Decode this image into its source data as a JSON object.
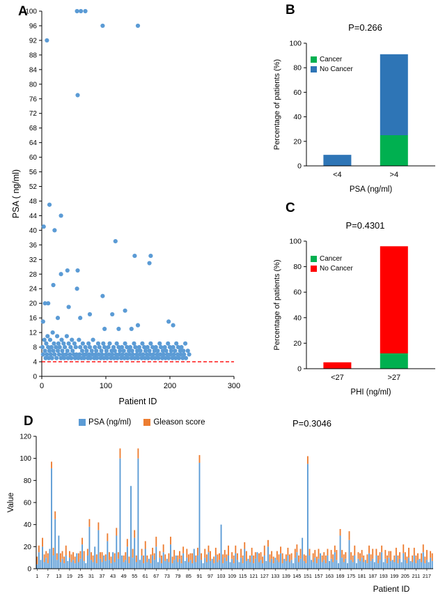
{
  "chart_data": [
    {
      "panel": "A",
      "type": "scatter",
      "xlabel": "Patient ID",
      "ylabel": "PSA ( ng/ml)",
      "xlim": [
        0,
        300
      ],
      "xticks": [
        0,
        100,
        200,
        300
      ],
      "ylim": [
        0,
        100
      ],
      "ytick_step": 4,
      "point_color": "#5B9BD5",
      "threshold_line": {
        "y": 4,
        "color": "#FF0000",
        "style": "dashed"
      },
      "points": [
        [
          55,
          100
        ],
        [
          61,
          100
        ],
        [
          68,
          100
        ],
        [
          95,
          96
        ],
        [
          150,
          96
        ],
        [
          8,
          92
        ],
        [
          56,
          77
        ],
        [
          12,
          47
        ],
        [
          30,
          44
        ],
        [
          3,
          41
        ],
        [
          20,
          40
        ],
        [
          115,
          37
        ],
        [
          145,
          33
        ],
        [
          170,
          33
        ],
        [
          168,
          31
        ],
        [
          40,
          29
        ],
        [
          56,
          29
        ],
        [
          30,
          28
        ],
        [
          18,
          25
        ],
        [
          55,
          24
        ],
        [
          95,
          22
        ],
        [
          5,
          20
        ],
        [
          10,
          20
        ],
        [
          42,
          19
        ],
        [
          130,
          18
        ],
        [
          75,
          17
        ],
        [
          110,
          17
        ],
        [
          25,
          16
        ],
        [
          60,
          16
        ],
        [
          2,
          15
        ],
        [
          198,
          15
        ],
        [
          150,
          14
        ],
        [
          205,
          14
        ],
        [
          98,
          13
        ],
        [
          120,
          13
        ],
        [
          140,
          13
        ],
        [
          1,
          8
        ],
        [
          2,
          6
        ],
        [
          4,
          10
        ],
        [
          5,
          7
        ],
        [
          6,
          5
        ],
        [
          7,
          9
        ],
        [
          8,
          6
        ],
        [
          9,
          11
        ],
        [
          10,
          8
        ],
        [
          11,
          5
        ],
        [
          12,
          7
        ],
        [
          13,
          10
        ],
        [
          14,
          6
        ],
        [
          15,
          8
        ],
        [
          16,
          5
        ],
        [
          17,
          12
        ],
        [
          18,
          7
        ],
        [
          19,
          9
        ],
        [
          20,
          6
        ],
        [
          22,
          8
        ],
        [
          23,
          5
        ],
        [
          24,
          11
        ],
        [
          25,
          7
        ],
        [
          26,
          9
        ],
        [
          27,
          6
        ],
        [
          28,
          8
        ],
        [
          30,
          5
        ],
        [
          31,
          10
        ],
        [
          32,
          7
        ],
        [
          33,
          6
        ],
        [
          34,
          9
        ],
        [
          35,
          5
        ],
        [
          36,
          8
        ],
        [
          38,
          6
        ],
        [
          39,
          11
        ],
        [
          40,
          7
        ],
        [
          41,
          5
        ],
        [
          42,
          9
        ],
        [
          44,
          6
        ],
        [
          45,
          8
        ],
        [
          46,
          5
        ],
        [
          47,
          10
        ],
        [
          48,
          7
        ],
        [
          50,
          6
        ],
        [
          51,
          9
        ],
        [
          52,
          5
        ],
        [
          53,
          8
        ],
        [
          54,
          6
        ],
        [
          57,
          5
        ],
        [
          58,
          10
        ],
        [
          59,
          6
        ],
        [
          60,
          8
        ],
        [
          62,
          5
        ],
        [
          63,
          7
        ],
        [
          64,
          9
        ],
        [
          65,
          6
        ],
        [
          66,
          5
        ],
        [
          68,
          8
        ],
        [
          69,
          6
        ],
        [
          70,
          7
        ],
        [
          72,
          5
        ],
        [
          73,
          9
        ],
        [
          74,
          6
        ],
        [
          75,
          8
        ],
        [
          76,
          5
        ],
        [
          78,
          7
        ],
        [
          79,
          6
        ],
        [
          80,
          10
        ],
        [
          82,
          5
        ],
        [
          83,
          8
        ],
        [
          84,
          6
        ],
        [
          85,
          7
        ],
        [
          86,
          5
        ],
        [
          88,
          9
        ],
        [
          89,
          6
        ],
        [
          90,
          8
        ],
        [
          92,
          5
        ],
        [
          93,
          7
        ],
        [
          94,
          6
        ],
        [
          96,
          9
        ],
        [
          97,
          5
        ],
        [
          98,
          8
        ],
        [
          100,
          6
        ],
        [
          101,
          7
        ],
        [
          102,
          5
        ],
        [
          104,
          8
        ],
        [
          105,
          6
        ],
        [
          106,
          9
        ],
        [
          108,
          5
        ],
        [
          109,
          7
        ],
        [
          110,
          6
        ],
        [
          112,
          8
        ],
        [
          113,
          5
        ],
        [
          114,
          7
        ],
        [
          116,
          6
        ],
        [
          117,
          9
        ],
        [
          118,
          5
        ],
        [
          120,
          8
        ],
        [
          121,
          6
        ],
        [
          122,
          7
        ],
        [
          124,
          5
        ],
        [
          125,
          8
        ],
        [
          126,
          6
        ],
        [
          128,
          7
        ],
        [
          129,
          5
        ],
        [
          130,
          9
        ],
        [
          132,
          6
        ],
        [
          133,
          8
        ],
        [
          134,
          5
        ],
        [
          136,
          7
        ],
        [
          137,
          6
        ],
        [
          138,
          8
        ],
        [
          140,
          5
        ],
        [
          141,
          7
        ],
        [
          142,
          6
        ],
        [
          144,
          9
        ],
        [
          145,
          5
        ],
        [
          146,
          8
        ],
        [
          148,
          6
        ],
        [
          149,
          7
        ],
        [
          150,
          5
        ],
        [
          152,
          8
        ],
        [
          153,
          6
        ],
        [
          154,
          7
        ],
        [
          156,
          5
        ],
        [
          157,
          9
        ],
        [
          158,
          6
        ],
        [
          160,
          8
        ],
        [
          161,
          5
        ],
        [
          162,
          7
        ],
        [
          164,
          6
        ],
        [
          165,
          8
        ],
        [
          166,
          5
        ],
        [
          168,
          7
        ],
        [
          169,
          6
        ],
        [
          170,
          9
        ],
        [
          172,
          5
        ],
        [
          173,
          8
        ],
        [
          174,
          6
        ],
        [
          176,
          7
        ],
        [
          177,
          5
        ],
        [
          178,
          8
        ],
        [
          180,
          6
        ],
        [
          181,
          7
        ],
        [
          182,
          5
        ],
        [
          184,
          9
        ],
        [
          185,
          6
        ],
        [
          186,
          8
        ],
        [
          188,
          5
        ],
        [
          189,
          7
        ],
        [
          190,
          6
        ],
        [
          192,
          8
        ],
        [
          193,
          5
        ],
        [
          194,
          7
        ],
        [
          196,
          6
        ],
        [
          197,
          9
        ],
        [
          198,
          5
        ],
        [
          200,
          8
        ],
        [
          201,
          6
        ],
        [
          202,
          7
        ],
        [
          204,
          5
        ],
        [
          205,
          8
        ],
        [
          206,
          6
        ],
        [
          208,
          7
        ],
        [
          209,
          5
        ],
        [
          210,
          9
        ],
        [
          212,
          6
        ],
        [
          213,
          8
        ],
        [
          214,
          5
        ],
        [
          216,
          7
        ],
        [
          217,
          6
        ],
        [
          218,
          8
        ],
        [
          220,
          5
        ],
        [
          221,
          7
        ],
        [
          222,
          6
        ],
        [
          224,
          9
        ],
        [
          225,
          5
        ],
        [
          228,
          7
        ],
        [
          230,
          6
        ]
      ]
    },
    {
      "panel": "B",
      "type": "stacked_bar",
      "title": "P=0.266",
      "ylabel": "Percentage of patients (%)",
      "xlabel": "PSA (ng/ml)",
      "ylim": [
        0,
        100
      ],
      "ytick_step": 20,
      "categories": [
        "<4",
        ">4"
      ],
      "series": [
        {
          "name": "Cancer",
          "color": "#00B050",
          "values": [
            0,
            25
          ]
        },
        {
          "name": "No Cancer",
          "color": "#2E75B6",
          "values": [
            9,
            66
          ]
        }
      ]
    },
    {
      "panel": "C",
      "type": "stacked_bar",
      "title": "P=0.4301",
      "ylabel": "Percentage of patients (%)",
      "xlabel": "PHI (ng/ml)",
      "ylim": [
        0,
        100
      ],
      "ytick_step": 20,
      "categories": [
        "<27",
        ">27"
      ],
      "series": [
        {
          "name": "Cancer",
          "color": "#00B050",
          "values": [
            0,
            12
          ]
        },
        {
          "name": "No Cancer",
          "color": "#FF0000",
          "values": [
            5,
            84
          ]
        }
      ]
    },
    {
      "panel": "D",
      "type": "stacked_bar_dense",
      "title": "P=0.3046",
      "ylabel": "Value",
      "xlabel": "Patient ID",
      "ylim": [
        0,
        120
      ],
      "ytick_step": 20,
      "x_tick_labels": [
        "1",
        "7",
        "13",
        "19",
        "25",
        "31",
        "37",
        "43",
        "49",
        "55",
        "61",
        "67",
        "73",
        "79",
        "85",
        "91",
        "97",
        "103",
        "109",
        "115",
        "121",
        "127",
        "133",
        "139",
        "145",
        "151",
        "157",
        "163",
        "169",
        "175",
        "181",
        "187",
        "193",
        "199",
        "205",
        "211",
        "217"
      ],
      "series": [
        {
          "name": "PSA (ng/ml)",
          "color": "#5B9BD5",
          "values": [
            4,
            15,
            8,
            20,
            6,
            10,
            5,
            18,
            91,
            12,
            45,
            8,
            30,
            6,
            9,
            5,
            12,
            7,
            10,
            6,
            8,
            5,
            14,
            6,
            9,
            22,
            7,
            5,
            12,
            38,
            8,
            6,
            20,
            5,
            35,
            9,
            6,
            12,
            7,
            25,
            8,
            5,
            15,
            6,
            30,
            9,
            100,
            12,
            6,
            8,
            20,
            5,
            75,
            10,
            28,
            6,
            100,
            8,
            12,
            5,
            18,
            6,
            9,
            5,
            12,
            8,
            20,
            6,
            10,
            5,
            15,
            7,
            9,
            6,
            22,
            5,
            8,
            12,
            6,
            9,
            5,
            14,
            7,
            10,
            6,
            8,
            5,
            18,
            6,
            12,
            96,
            8,
            5,
            10,
            6,
            15,
            7,
            9,
            5,
            12,
            6,
            8,
            40,
            5,
            10,
            7,
            12,
            6,
            9,
            5,
            14,
            8,
            6,
            10,
            5,
            18,
            7,
            9,
            6,
            12,
            5,
            9,
            15,
            6,
            8,
            5,
            12,
            7,
            20,
            6,
            9,
            5,
            10,
            8,
            6,
            14,
            5,
            9,
            7,
            12,
            6,
            8,
            5,
            10,
            15,
            6,
            9,
            28,
            7,
            5,
            95,
            12,
            8,
            6,
            10,
            5,
            9,
            14,
            6,
            8,
            5,
            12,
            7,
            9,
            6,
            15,
            8,
            5,
            30,
            10,
            6,
            9,
            5,
            26,
            8,
            6,
            12,
            5,
            9,
            7,
            10,
            6,
            8,
            5,
            14,
            7,
            9,
            6,
            12,
            5,
            8,
            15,
            6,
            9,
            5,
            10,
            7,
            8,
            6,
            12,
            5,
            9,
            6,
            14,
            8,
            5,
            10,
            7,
            6,
            12,
            5,
            8,
            9,
            6,
            15,
            5,
            8,
            6,
            10,
            7
          ]
        },
        {
          "name": "Gleason score",
          "color": "#ED7D31",
          "values": [
            7,
            6,
            0,
            8,
            7,
            6,
            9,
            0,
            6,
            7,
            7,
            6,
            0,
            8,
            7,
            6,
            9,
            0,
            6,
            7,
            7,
            6,
            0,
            8,
            7,
            6,
            9,
            0,
            6,
            7,
            7,
            6,
            0,
            8,
            7,
            6,
            9,
            0,
            6,
            7,
            7,
            6,
            0,
            8,
            7,
            6,
            9,
            0,
            6,
            7,
            7,
            6,
            0,
            8,
            7,
            6,
            9,
            0,
            6,
            7,
            7,
            6,
            0,
            8,
            7,
            6,
            9,
            0,
            6,
            7,
            7,
            6,
            0,
            8,
            7,
            6,
            9,
            0,
            6,
            7,
            7,
            6,
            0,
            8,
            7,
            6,
            9,
            0,
            6,
            7,
            7,
            6,
            0,
            8,
            7,
            6,
            9,
            0,
            6,
            7,
            7,
            6,
            0,
            8,
            7,
            6,
            9,
            0,
            6,
            7,
            7,
            6,
            0,
            8,
            7,
            6,
            9,
            0,
            6,
            7,
            7,
            6,
            0,
            8,
            7,
            6,
            9,
            0,
            6,
            7,
            7,
            6,
            0,
            8,
            7,
            6,
            9,
            0,
            6,
            7,
            7,
            6,
            0,
            8,
            7,
            6,
            9,
            0,
            6,
            7,
            7,
            6,
            0,
            8,
            7,
            6,
            9,
            0,
            6,
            7,
            7,
            6,
            0,
            8,
            7,
            6,
            9,
            0,
            6,
            7,
            7,
            6,
            0,
            8,
            7,
            6,
            9,
            0,
            6,
            7,
            7,
            6,
            0,
            8,
            7,
            6,
            9,
            0,
            6,
            7,
            7,
            6,
            0,
            8,
            7,
            6,
            9,
            0,
            6,
            7,
            7,
            6,
            0,
            8,
            7,
            6,
            9,
            0,
            6,
            7,
            7,
            6,
            0,
            8,
            7,
            6,
            9,
            0,
            6,
            7
          ]
        }
      ]
    }
  ]
}
